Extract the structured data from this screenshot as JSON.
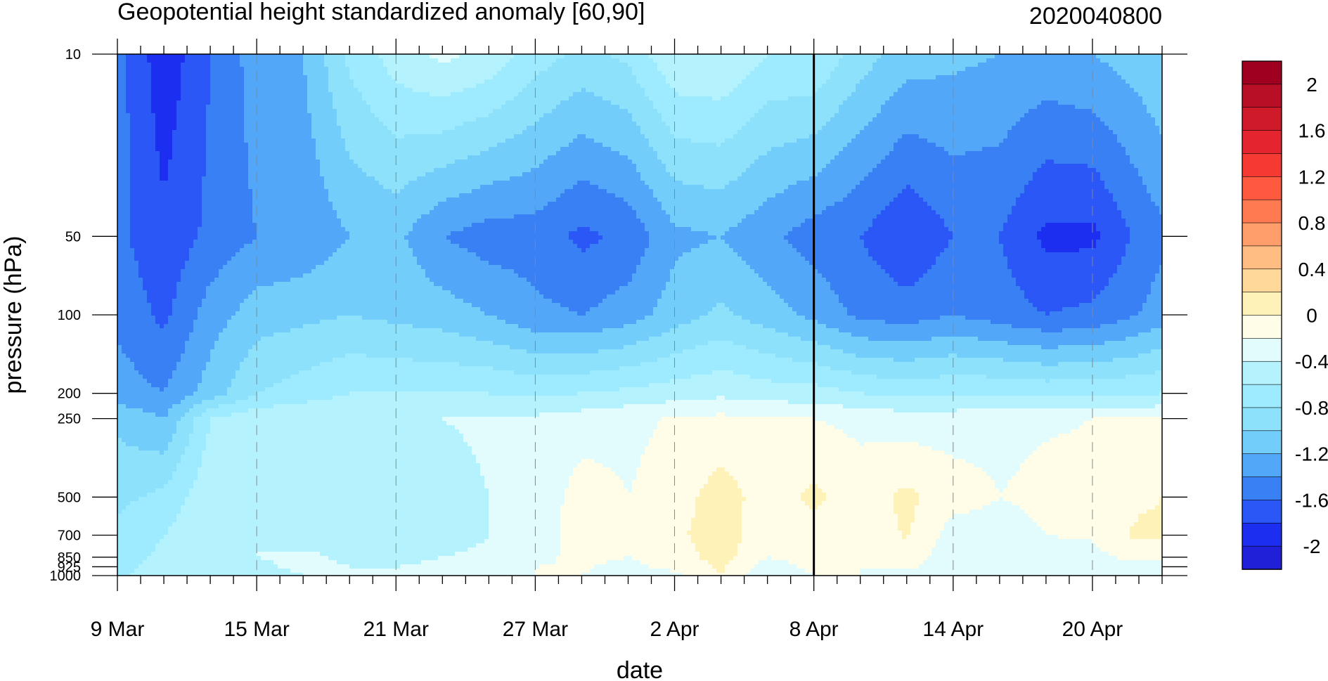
{
  "chart_data": {
    "type": "heatmap",
    "title": "Geopotential height standardized anomaly [60,90]",
    "date_label": "2020040800",
    "xlabel": "date",
    "ylabel": "pressure (hPa)",
    "x_ticks": [
      {
        "day": 0,
        "label": "9 Mar"
      },
      {
        "day": 6,
        "label": "15 Mar"
      },
      {
        "day": 12,
        "label": "21 Mar"
      },
      {
        "day": 18,
        "label": "27 Mar"
      },
      {
        "day": 24,
        "label": "2 Apr"
      },
      {
        "day": 30,
        "label": "8 Apr"
      },
      {
        "day": 36,
        "label": "14 Apr"
      },
      {
        "day": 42,
        "label": "20 Apr"
      }
    ],
    "x_range_days": [
      0,
      45
    ],
    "y_ticks": [
      "10",
      "50",
      "100",
      "200",
      "250",
      "500",
      "700",
      "850",
      "925",
      "1000"
    ],
    "levels": [
      10,
      50,
      100,
      200,
      250,
      500,
      700,
      850,
      925,
      1000
    ],
    "current_day": 30,
    "colorbar": {
      "labels": [
        "2",
        "1.6",
        "1.2",
        "0.8",
        "0.4",
        "0",
        "-0.4",
        "-0.8",
        "-1.2",
        "-1.6",
        "-2"
      ],
      "bounds": [
        -2.2,
        -2.0,
        -1.8,
        -1.6,
        -1.4,
        -1.2,
        -1.0,
        -0.8,
        -0.6,
        -0.4,
        -0.2,
        0.0,
        0.2,
        0.4,
        0.6,
        0.8,
        1.0,
        1.2,
        1.4,
        1.6,
        1.8,
        2.0,
        2.2
      ],
      "colors": [
        "#2020d8",
        "#1c2ff0",
        "#2a57f5",
        "#3a80f5",
        "#52a7f8",
        "#72cdfb",
        "#8ee1fb",
        "#9eeafe",
        "#b4f3fe",
        "#e2fbfd",
        "#fffde8",
        "#fff2b8",
        "#ffd89a",
        "#ffbd84",
        "#ff9e6a",
        "#ff7a50",
        "#ff5a40",
        "#f43a33",
        "#e42530",
        "#cf1a2a",
        "#b80f27",
        "#a00020"
      ]
    },
    "columns": [
      {
        "day": 0,
        "v": [
          -1.5,
          -1.55,
          -1.45,
          -1.3,
          -1.05,
          -0.85,
          -0.75,
          -0.7,
          -0.68,
          -0.65
        ]
      },
      {
        "day": 2,
        "v": [
          -1.95,
          -1.75,
          -1.65,
          -1.4,
          -1.2,
          -0.75,
          -0.6,
          -0.55,
          -0.5,
          -0.45
        ]
      },
      {
        "day": 4,
        "v": [
          -1.6,
          -1.55,
          -1.3,
          -1.1,
          -0.6,
          -0.45,
          -0.4,
          -0.42,
          -0.45,
          -0.48
        ]
      },
      {
        "day": 6,
        "v": [
          -1.3,
          -1.4,
          -1.1,
          -0.8,
          -0.45,
          -0.42,
          -0.4,
          -0.4,
          -0.42,
          -0.44
        ]
      },
      {
        "day": 8,
        "v": [
          -1.2,
          -1.35,
          -1.05,
          -0.7,
          -0.42,
          -0.45,
          -0.44,
          -0.38,
          -0.38,
          -0.4
        ]
      },
      {
        "day": 10,
        "v": [
          -0.75,
          -1.2,
          -1.0,
          -0.6,
          -0.42,
          -0.45,
          -0.44,
          -0.42,
          -0.4,
          -0.4
        ]
      },
      {
        "day": 12,
        "v": [
          -0.5,
          -1.15,
          -1.05,
          -0.6,
          -0.42,
          -0.45,
          -0.45,
          -0.43,
          -0.4,
          -0.38
        ]
      },
      {
        "day": 14,
        "v": [
          -0.35,
          -1.4,
          -1.1,
          -0.6,
          -0.4,
          -0.45,
          -0.45,
          -0.4,
          -0.38,
          -0.38
        ]
      },
      {
        "day": 16,
        "v": [
          -0.45,
          -1.5,
          -1.2,
          -0.6,
          -0.38,
          -0.4,
          -0.4,
          -0.38,
          -0.38,
          -0.38
        ]
      },
      {
        "day": 18,
        "v": [
          -0.7,
          -1.5,
          -1.35,
          -0.65,
          -0.36,
          -0.35,
          -0.3,
          -0.25,
          -0.2,
          -0.2
        ]
      },
      {
        "day": 20,
        "v": [
          -0.85,
          -1.65,
          -1.4,
          -0.6,
          -0.3,
          -0.1,
          -0.1,
          -0.15,
          -0.18,
          -0.2
        ]
      },
      {
        "day": 22,
        "v": [
          -0.75,
          -1.55,
          -1.3,
          -0.55,
          -0.25,
          -0.2,
          -0.2,
          -0.2,
          -0.25,
          -0.3
        ]
      },
      {
        "day": 24,
        "v": [
          -0.42,
          -1.25,
          -1.1,
          -0.5,
          -0.18,
          -0.1,
          -0.05,
          -0.1,
          -0.15,
          -0.25
        ]
      },
      {
        "day": 26,
        "v": [
          -0.4,
          -1.2,
          -0.95,
          -0.45,
          -0.15,
          0.1,
          0.12,
          0.08,
          0.03,
          0.0
        ]
      },
      {
        "day": 28,
        "v": [
          -0.6,
          -1.35,
          -1.1,
          -0.5,
          -0.18,
          -0.1,
          -0.15,
          -0.2,
          -0.3,
          -0.35
        ]
      },
      {
        "day": 30,
        "v": [
          -0.6,
          -1.5,
          -1.25,
          -0.52,
          -0.2,
          0.05,
          -0.1,
          -0.12,
          -0.15,
          -0.2
        ]
      },
      {
        "day": 32,
        "v": [
          -0.9,
          -1.6,
          -1.45,
          -0.6,
          -0.25,
          -0.1,
          -0.15,
          -0.2,
          -0.2,
          -0.2
        ]
      },
      {
        "day": 34,
        "v": [
          -1.1,
          -1.8,
          -1.5,
          -0.65,
          -0.3,
          0.05,
          0.02,
          -0.1,
          -0.15,
          -0.3
        ]
      },
      {
        "day": 36,
        "v": [
          -1.15,
          -1.6,
          -1.4,
          -0.62,
          -0.3,
          -0.1,
          -0.3,
          -0.32,
          -0.35,
          -0.38
        ]
      },
      {
        "day": 38,
        "v": [
          -1.2,
          -1.6,
          -1.5,
          -0.62,
          -0.25,
          -0.2,
          -0.3,
          -0.35,
          -0.36,
          -0.38
        ]
      },
      {
        "day": 40,
        "v": [
          -1.25,
          -1.85,
          -1.6,
          -0.65,
          -0.22,
          -0.15,
          -0.2,
          -0.28,
          -0.3,
          -0.32
        ]
      },
      {
        "day": 42,
        "v": [
          -1.2,
          -1.85,
          -1.55,
          -0.65,
          -0.2,
          -0.15,
          -0.18,
          -0.25,
          -0.3,
          -0.32
        ]
      },
      {
        "day": 44,
        "v": [
          -1.1,
          -1.55,
          -1.4,
          -0.62,
          -0.2,
          -0.05,
          0.05,
          -0.15,
          -0.25,
          -0.3
        ]
      },
      {
        "day": 45,
        "v": [
          -1.0,
          -1.45,
          -1.3,
          -0.6,
          -0.2,
          0.0,
          0.05,
          -0.15,
          -0.25,
          -0.3
        ]
      }
    ]
  }
}
